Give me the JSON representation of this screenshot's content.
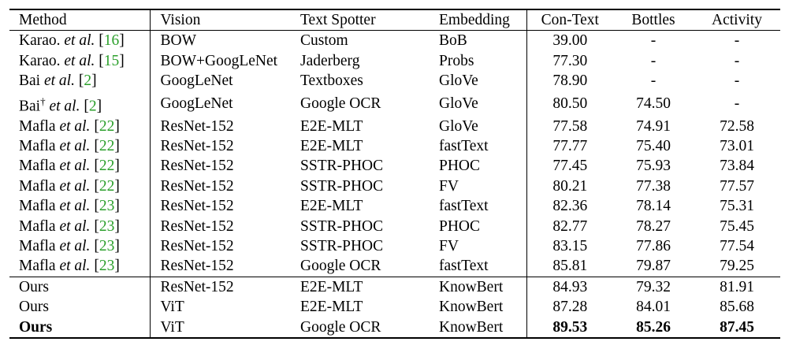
{
  "header": {
    "method": "Method",
    "vision": "Vision",
    "spotter": "Text Spotter",
    "embedding": "Embedding",
    "con_text": "Con-Text",
    "bottles": "Bottles",
    "activity": "Activity"
  },
  "rows": [
    {
      "author": "Karao.",
      "etal": "et al.",
      "dagger": "",
      "ref": "16",
      "vision": "BOW",
      "spotter": "Custom",
      "embedding": "BoB",
      "con_text": "39.00",
      "bottles": "-",
      "activity": "-"
    },
    {
      "author": "Karao.",
      "etal": "et al.",
      "dagger": "",
      "ref": "15",
      "vision": "BOW+GoogLeNet",
      "spotter": "Jaderberg",
      "embedding": "Probs",
      "con_text": "77.30",
      "bottles": "-",
      "activity": "-"
    },
    {
      "author": "Bai",
      "etal": "et al.",
      "dagger": "",
      "ref": "2",
      "vision": "GoogLeNet",
      "spotter": "Textboxes",
      "embedding": "GloVe",
      "con_text": "78.90",
      "bottles": "-",
      "activity": "-"
    },
    {
      "author": "Bai",
      "etal": "et al.",
      "dagger": "†",
      "ref": "2",
      "vision": "GoogLeNet",
      "spotter": "Google OCR",
      "embedding": "GloVe",
      "con_text": "80.50",
      "bottles": "74.50",
      "activity": "-"
    },
    {
      "author": "Mafla",
      "etal": "et al.",
      "dagger": "",
      "ref": "22",
      "vision": "ResNet-152",
      "spotter": "E2E-MLT",
      "embedding": "GloVe",
      "con_text": "77.58",
      "bottles": "74.91",
      "activity": "72.58"
    },
    {
      "author": "Mafla",
      "etal": "et al.",
      "dagger": "",
      "ref": "22",
      "vision": "ResNet-152",
      "spotter": "E2E-MLT",
      "embedding": "fastText",
      "con_text": "77.77",
      "bottles": "75.40",
      "activity": "73.01"
    },
    {
      "author": "Mafla",
      "etal": "et al.",
      "dagger": "",
      "ref": "22",
      "vision": "ResNet-152",
      "spotter": "SSTR-PHOC",
      "embedding": "PHOC",
      "con_text": "77.45",
      "bottles": "75.93",
      "activity": "73.84"
    },
    {
      "author": "Mafla",
      "etal": "et al.",
      "dagger": "",
      "ref": "22",
      "vision": "ResNet-152",
      "spotter": "SSTR-PHOC",
      "embedding": "FV",
      "con_text": "80.21",
      "bottles": "77.38",
      "activity": "77.57"
    },
    {
      "author": "Mafla",
      "etal": "et al.",
      "dagger": "",
      "ref": "23",
      "vision": "ResNet-152",
      "spotter": "E2E-MLT",
      "embedding": "fastText",
      "con_text": "82.36",
      "bottles": "78.14",
      "activity": "75.31"
    },
    {
      "author": "Mafla",
      "etal": "et al.",
      "dagger": "",
      "ref": "23",
      "vision": "ResNet-152",
      "spotter": "SSTR-PHOC",
      "embedding": "PHOC",
      "con_text": "82.77",
      "bottles": "78.27",
      "activity": "75.45"
    },
    {
      "author": "Mafla",
      "etal": "et al.",
      "dagger": "",
      "ref": "23",
      "vision": "ResNet-152",
      "spotter": "SSTR-PHOC",
      "embedding": "FV",
      "con_text": "83.15",
      "bottles": "77.86",
      "activity": "77.54"
    },
    {
      "author": "Mafla",
      "etal": "et al.",
      "dagger": "",
      "ref": "23",
      "vision": "ResNet-152",
      "spotter": "Google OCR",
      "embedding": "fastText",
      "con_text": "85.81",
      "bottles": "79.87",
      "activity": "79.25"
    }
  ],
  "ours": [
    {
      "method": "Ours",
      "vision": "ResNet-152",
      "spotter": "E2E-MLT",
      "embedding": "KnowBert",
      "con_text": "84.93",
      "bottles": "79.32",
      "activity": "81.91",
      "bold": false
    },
    {
      "method": "Ours",
      "vision": "ViT",
      "spotter": "E2E-MLT",
      "embedding": "KnowBert",
      "con_text": "87.28",
      "bottles": "84.01",
      "activity": "85.68",
      "bold": false
    },
    {
      "method": "Ours",
      "vision": "ViT",
      "spotter": "Google OCR",
      "embedding": "KnowBert",
      "con_text": "89.53",
      "bottles": "85.26",
      "activity": "87.45",
      "bold": true
    }
  ],
  "colors": {
    "citation": "#2ca02c",
    "text": "#000000"
  }
}
